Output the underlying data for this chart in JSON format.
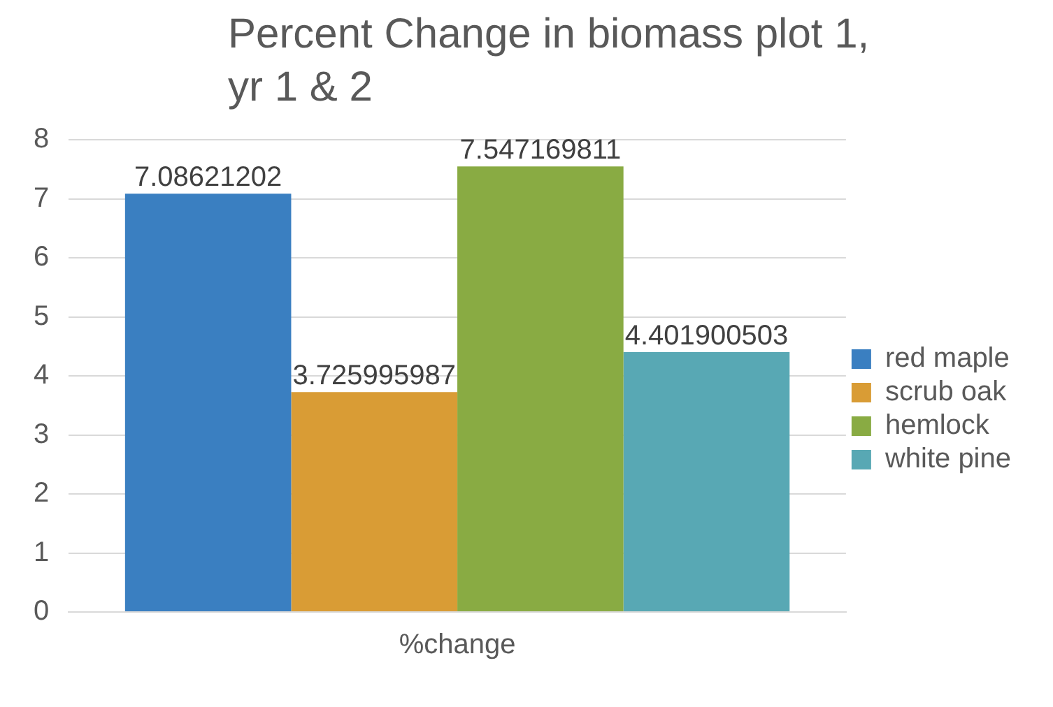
{
  "chart_data": {
    "type": "bar",
    "title": "Percent Change in biomass plot 1, yr 1 & 2",
    "categories": [
      "%change"
    ],
    "series": [
      {
        "name": "red maple",
        "color": "#3a7fc1",
        "values": [
          7.08621202
        ]
      },
      {
        "name": "scrub oak",
        "color": "#d99c35",
        "values": [
          3.725995987
        ]
      },
      {
        "name": "hemlock",
        "color": "#89ab43",
        "values": [
          7.547169811
        ]
      },
      {
        "name": "white pine",
        "color": "#58a8b4",
        "values": [
          4.401900503
        ]
      }
    ],
    "ylim": [
      0,
      8
    ],
    "yticks": [
      0,
      1,
      2,
      3,
      4,
      5,
      6,
      7,
      8
    ],
    "grid": "y",
    "legend": "right",
    "data_labels": true
  }
}
